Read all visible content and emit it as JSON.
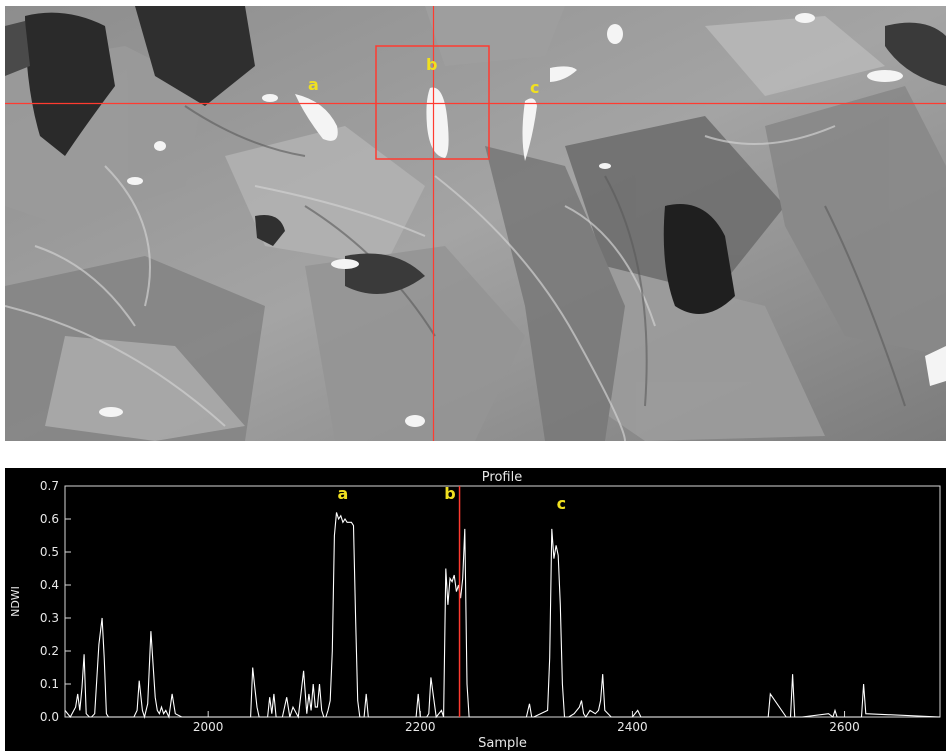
{
  "image_view": {
    "labels": [
      "a",
      "b",
      "c"
    ],
    "crosshair_color": "#ff3b30",
    "box_color": "#ff3b30",
    "label_color": "#f0e020"
  },
  "profile": {
    "title": "Profile",
    "background": "#000000",
    "line_color": "#ffffff",
    "marker_color": "#ff3b30"
  },
  "chart_data": {
    "type": "line",
    "title": "Profile",
    "xlabel": "Sample",
    "ylabel": "NDWI",
    "xlim": [
      1865,
      2690
    ],
    "ylim": [
      0,
      0.7
    ],
    "x_ticks": [
      2000,
      2200,
      2400,
      2600
    ],
    "y_ticks": [
      0.0,
      0.1,
      0.2,
      0.3,
      0.4,
      0.5,
      0.6,
      0.7
    ],
    "y_tick_labels": [
      "0.0",
      "0.1",
      "0.2",
      "0.3",
      "0.4",
      "0.5",
      "0.6",
      "0.7"
    ],
    "marker_x": 2237,
    "annotations": [
      {
        "text": "a",
        "x": 2127,
        "y": 0.66
      },
      {
        "text": "b",
        "x": 2228,
        "y": 0.66
      },
      {
        "text": "c",
        "x": 2333,
        "y": 0.63
      }
    ],
    "series": [
      {
        "x": [
          1865,
          1870,
          1875,
          1877,
          1879,
          1881,
          1883,
          1885,
          1888,
          1890,
          1893,
          1897,
          1900,
          1902,
          1904,
          1906,
          1908,
          1910,
          1930,
          1933,
          1935,
          1938,
          1940,
          1943,
          1946,
          1950,
          1952,
          1954,
          1956,
          1958,
          1960,
          1963,
          1966,
          1969,
          1975,
          1978,
          1980,
          1985,
          2040,
          2042,
          2044,
          2046,
          2048,
          2056,
          2058,
          2060,
          2062,
          2064,
          2070,
          2074,
          2077,
          2080,
          2085,
          2090,
          2093,
          2095,
          2097,
          2099,
          2101,
          2103,
          2105,
          2107,
          2109,
          2111,
          2113,
          2115,
          2117,
          2119,
          2121,
          2123,
          2125,
          2127,
          2129,
          2131,
          2133,
          2135,
          2137,
          2139,
          2141,
          2143,
          2147,
          2149,
          2151,
          2153,
          2160,
          2190,
          2196,
          2198,
          2200,
          2204,
          2206,
          2208,
          2210,
          2215,
          2220,
          2222,
          2224,
          2226,
          2228,
          2230,
          2232,
          2234,
          2236,
          2238,
          2240,
          2242,
          2244,
          2246,
          2248,
          2255,
          2300,
          2303,
          2305,
          2307,
          2320,
          2322,
          2324,
          2326,
          2328,
          2330,
          2332,
          2334,
          2336,
          2338,
          2340,
          2345,
          2350,
          2352,
          2354,
          2356,
          2360,
          2365,
          2368,
          2370,
          2372,
          2374,
          2380,
          2400,
          2405,
          2408,
          2420,
          2520,
          2526,
          2528,
          2530,
          2545,
          2549,
          2551,
          2553,
          2560,
          2585,
          2589,
          2591,
          2593,
          2610,
          2616,
          2618,
          2620,
          2690
        ],
        "y": [
          0.02,
          0,
          0.03,
          0.07,
          0.02,
          0.09,
          0.19,
          0.01,
          0,
          0,
          0.01,
          0.22,
          0.3,
          0.18,
          0.01,
          0,
          0,
          0,
          0,
          0.02,
          0.11,
          0.02,
          0,
          0.04,
          0.26,
          0.06,
          0.02,
          0.01,
          0.03,
          0.01,
          0.02,
          0,
          0.07,
          0.01,
          0,
          0,
          0,
          0,
          0,
          0.15,
          0.09,
          0.03,
          0,
          0,
          0.06,
          0.01,
          0.07,
          0,
          0,
          0.06,
          0,
          0.03,
          0,
          0.14,
          0.01,
          0.07,
          0.02,
          0.1,
          0.03,
          0.03,
          0.1,
          0.02,
          0,
          0,
          0.02,
          0.05,
          0.2,
          0.55,
          0.62,
          0.6,
          0.61,
          0.59,
          0.6,
          0.59,
          0.59,
          0.59,
          0.58,
          0.3,
          0.05,
          0,
          0,
          0.07,
          0,
          0,
          0,
          0,
          0,
          0.07,
          0,
          0,
          0,
          0.01,
          0.12,
          0,
          0.02,
          0,
          0.45,
          0.34,
          0.42,
          0.41,
          0.43,
          0.38,
          0.4,
          0.36,
          0.42,
          0.57,
          0.1,
          0,
          0,
          0,
          0,
          0.04,
          0,
          0,
          0.02,
          0.18,
          0.57,
          0.48,
          0.52,
          0.49,
          0.34,
          0.1,
          0,
          0,
          0,
          0.01,
          0.03,
          0.05,
          0.01,
          0,
          0.02,
          0.01,
          0.02,
          0.05,
          0.13,
          0.02,
          0,
          0,
          0.02,
          0,
          0,
          0,
          0,
          0,
          0.07,
          0,
          0,
          0.13,
          0,
          0,
          0.01,
          0,
          0.02,
          0,
          0,
          0,
          0.1,
          0.01,
          0
        ]
      }
    ]
  }
}
